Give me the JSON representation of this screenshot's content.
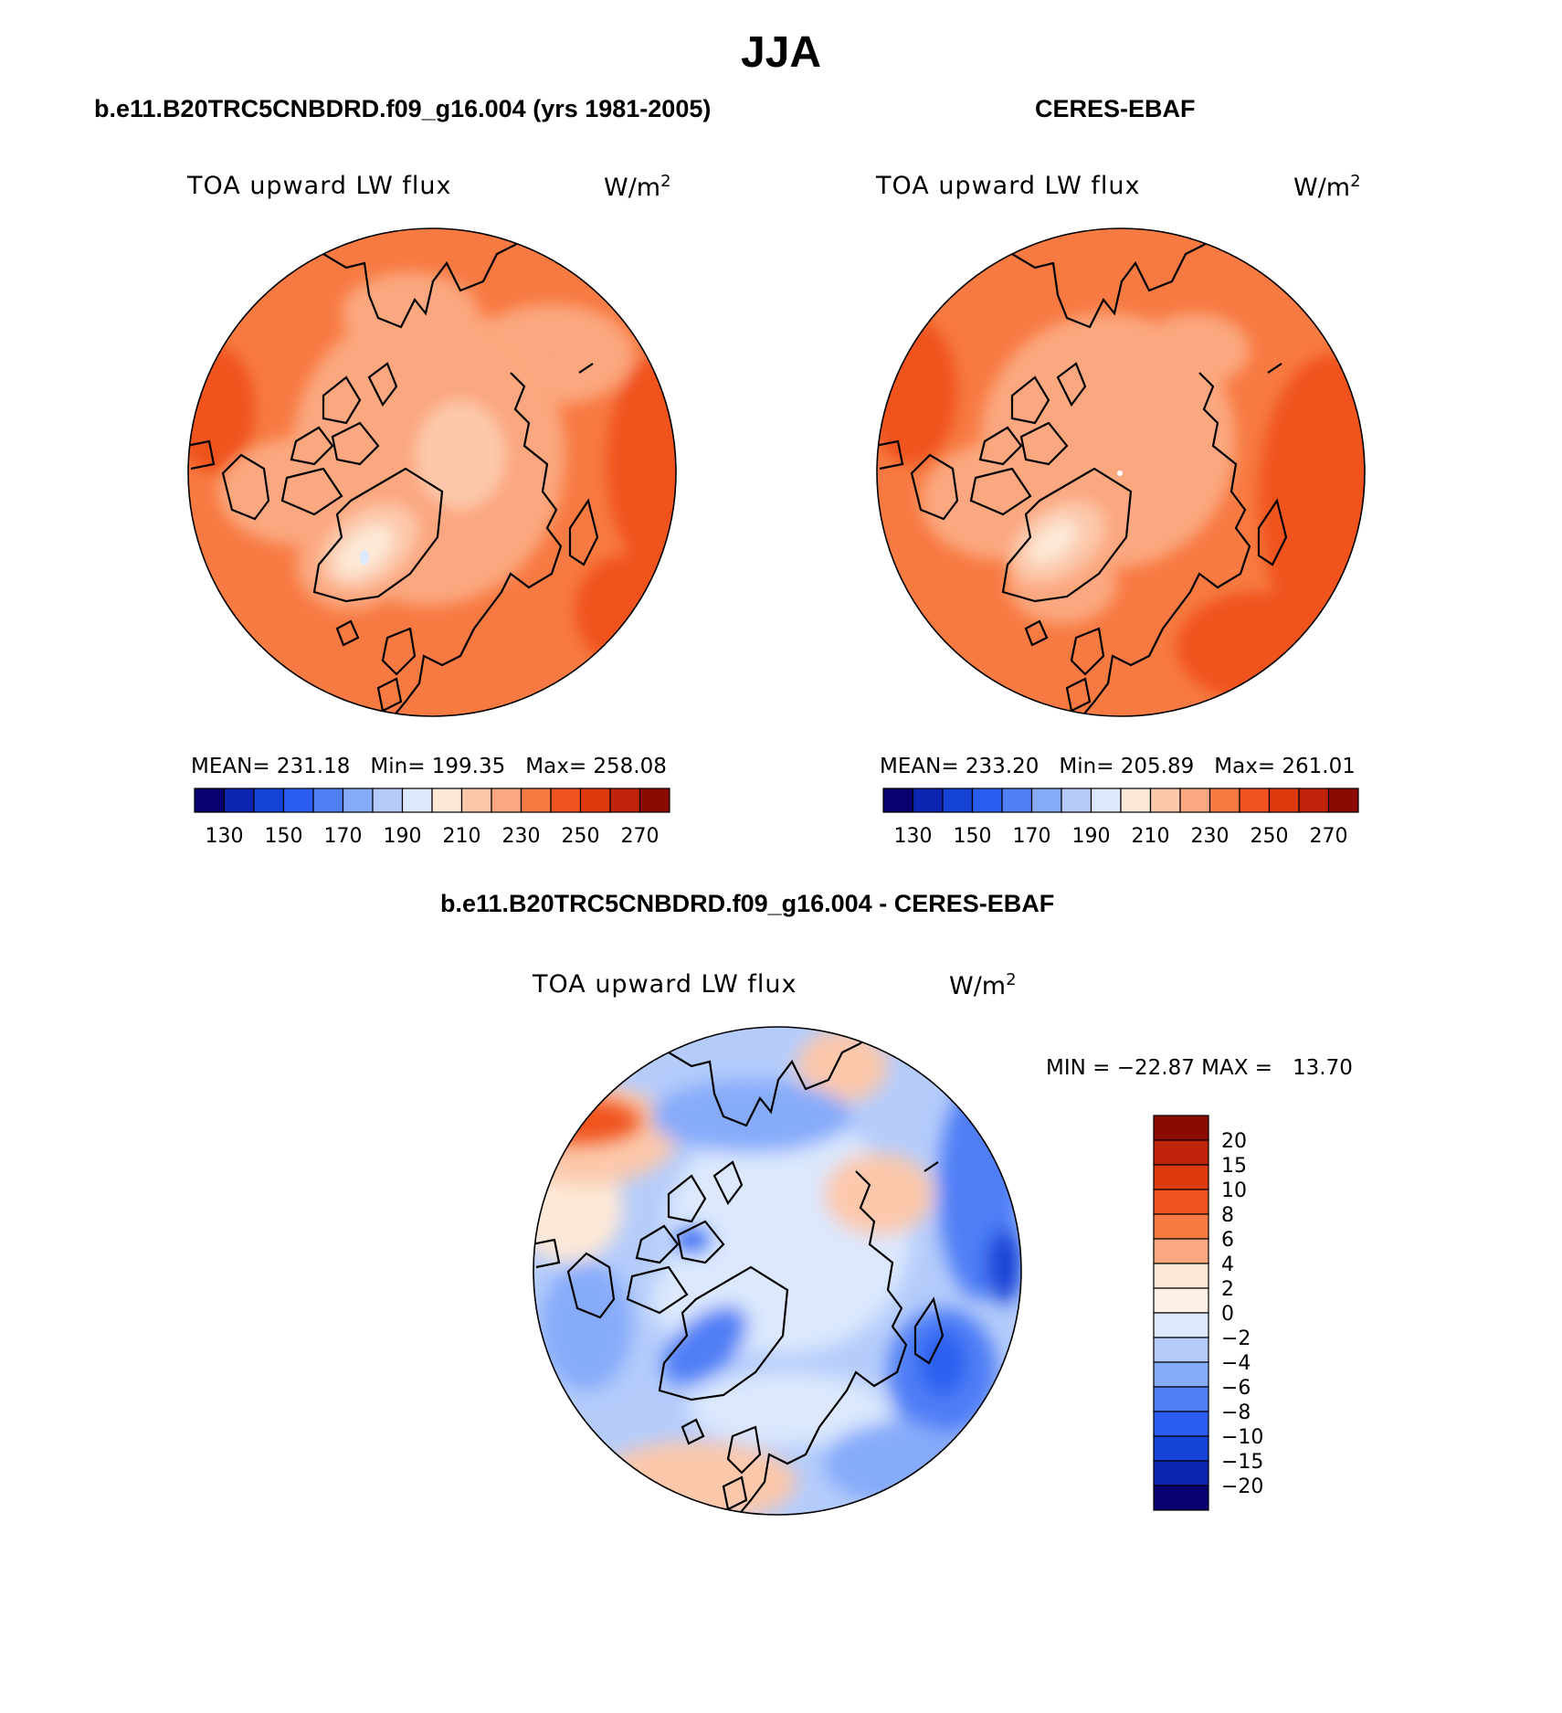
{
  "figure": {
    "title": "JJA",
    "diff_title": "b.e11.B20TRC5CNBDRD.f09_g16.004 - CERES-EBAF"
  },
  "chart_data": [
    {
      "type": "heatmap",
      "projection": "north-polar-stereographic",
      "title": "b.e11.B20TRC5CNBDRD.f09_g16.004 (yrs 1981-2005)",
      "variable": "TOA upward LW flux",
      "units_base": "W/m",
      "units_exp": "2",
      "stats": {
        "mean_label": "MEAN= 231.18",
        "min_label": "Min= 199.35",
        "max_label": "Max= 258.08",
        "mean": 231.18,
        "min": 199.35,
        "max": 258.08
      },
      "colorbar": {
        "orientation": "horizontal",
        "tick_labels": [
          "130",
          "150",
          "170",
          "190",
          "210",
          "230",
          "250",
          "270"
        ],
        "colors": [
          "#08006e",
          "#0d24b0",
          "#1443d6",
          "#2b5ef0",
          "#4f7ef5",
          "#86abfa",
          "#b5ccfb",
          "#dbe8fd",
          "#fde8d7",
          "#fcc8ab",
          "#fba77f",
          "#f77a42",
          "#f0531f",
          "#de3a10",
          "#bf240a",
          "#8c0a04"
        ]
      }
    },
    {
      "type": "heatmap",
      "projection": "north-polar-stereographic",
      "title": "CERES-EBAF",
      "variable": "TOA upward LW flux",
      "units_base": "W/m",
      "units_exp": "2",
      "stats": {
        "mean_label": "MEAN= 233.20",
        "min_label": "Min= 205.89",
        "max_label": "Max= 261.01",
        "mean": 233.2,
        "min": 205.89,
        "max": 261.01
      },
      "colorbar": {
        "orientation": "horizontal",
        "tick_labels": [
          "130",
          "150",
          "170",
          "190",
          "210",
          "230",
          "250",
          "270"
        ],
        "colors": [
          "#08006e",
          "#0d24b0",
          "#1443d6",
          "#2b5ef0",
          "#4f7ef5",
          "#86abfa",
          "#b5ccfb",
          "#dbe8fd",
          "#fde8d7",
          "#fcc8ab",
          "#fba77f",
          "#f77a42",
          "#f0531f",
          "#de3a10",
          "#bf240a",
          "#8c0a04"
        ]
      }
    },
    {
      "type": "heatmap",
      "projection": "north-polar-stereographic",
      "title": "b.e11.B20TRC5CNBDRD.f09_g16.004 - CERES-EBAF",
      "variable": "TOA upward LW flux",
      "units_base": "W/m",
      "units_exp": "2",
      "stats": {
        "minmax_label": "MIN = −22.87 MAX =   13.70",
        "min": -22.87,
        "max": 13.7
      },
      "colorbar": {
        "orientation": "vertical",
        "tick_labels": [
          "20",
          "15",
          "10",
          "8",
          "6",
          "4",
          "2",
          "0",
          "−2",
          "−4",
          "−6",
          "−8",
          "−10",
          "−15",
          "−20"
        ],
        "colors": [
          "#8c0a04",
          "#bf240a",
          "#de3a10",
          "#f0531f",
          "#f77a42",
          "#fba77f",
          "#fde8d7",
          "#fdf0e6",
          "#dbe8fd",
          "#b5ccfb",
          "#86abfa",
          "#4f7ef5",
          "#2b5ef0",
          "#1443d6",
          "#0d24b0",
          "#08006e"
        ]
      }
    }
  ]
}
